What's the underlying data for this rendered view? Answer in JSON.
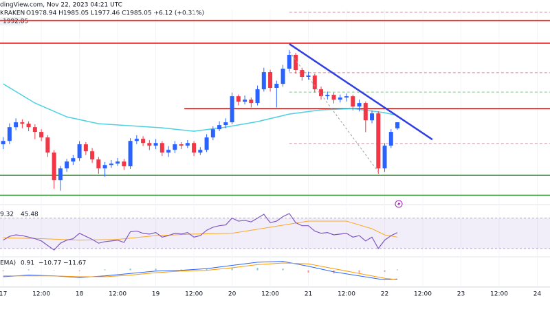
{
  "header": {
    "source": "dingView.com, Nov 22, 2023 04:21 UTC",
    "exchange": "KRAKEN",
    "ohlc": "O1978.94 H1985.05 L1977.46 C1985.05 +6.12 (+0.31%)",
    "price_tag": "1992.85"
  },
  "chart_data": [
    {
      "type": "candlestick",
      "up_color": "#2962ff",
      "down_color": "#f23645",
      "xlim": [
        -1,
        172
      ],
      "ylim": [
        1904,
        2098
      ],
      "xticks": [
        {
          "value": 0,
          "label": "17"
        },
        {
          "value": 12,
          "label": "12:00"
        },
        {
          "value": 24,
          "label": "18"
        },
        {
          "value": 36,
          "label": "12:00"
        },
        {
          "value": 48,
          "label": "19"
        },
        {
          "value": 60,
          "label": "12:00"
        },
        {
          "value": 72,
          "label": "20"
        },
        {
          "value": 84,
          "label": "12:00"
        },
        {
          "value": 96,
          "label": "21"
        },
        {
          "value": 108,
          "label": "12:00"
        },
        {
          "value": 120,
          "label": "22"
        },
        {
          "value": 132,
          "label": "12:00"
        },
        {
          "value": 144,
          "label": "23"
        },
        {
          "value": 156,
          "label": "12:00"
        },
        {
          "value": 168,
          "label": "24"
        }
      ],
      "x": [
        0,
        2,
        4,
        6,
        8,
        10,
        12,
        14,
        16,
        18,
        20,
        22,
        24,
        26,
        28,
        30,
        32,
        34,
        36,
        38,
        40,
        42,
        44,
        46,
        48,
        50,
        52,
        54,
        56,
        58,
        60,
        62,
        64,
        66,
        68,
        70,
        72,
        74,
        76,
        78,
        80,
        82,
        84,
        86,
        88,
        90,
        92,
        94,
        96,
        98,
        100,
        102,
        104,
        106,
        108,
        110,
        112,
        114,
        116,
        118,
        120,
        122,
        124
      ],
      "open": [
        1962.8,
        1966.2,
        1980.1,
        1985.0,
        1983.6,
        1980.1,
        1975.3,
        1969.7,
        1954.4,
        1926.7,
        1938.5,
        1945.4,
        1948.9,
        1962.8,
        1955.8,
        1947.5,
        1938.5,
        1941.9,
        1943.3,
        1945.4,
        1940.6,
        1966.2,
        1968.3,
        1964.1,
        1961.4,
        1964.1,
        1954.4,
        1957.2,
        1962.8,
        1961.4,
        1964.1,
        1954.4,
        1957.2,
        1969.7,
        1978.0,
        1982.2,
        1985.0,
        2011.3,
        2005.8,
        2007.9,
        2004.4,
        2018.3,
        2035.6,
        2019.7,
        2023.8,
        2039.1,
        2053.0,
        2037.7,
        2030.8,
        2032.2,
        2018.3,
        2011.3,
        2012.7,
        2007.9,
        2010.0,
        2011.3,
        2000.9,
        2004.4,
        1987.0,
        1994.0,
        1938.5,
        1961.4,
        1978.94
      ],
      "high": [
        1970,
        1984,
        1989,
        1988,
        1986,
        1983,
        1978,
        1972,
        1957,
        1941,
        1948,
        1952,
        1966,
        1965,
        1959,
        1950,
        1945,
        1947,
        1949,
        1948,
        1969,
        1972,
        1971,
        1967,
        1968,
        1966,
        1961,
        1966,
        1965,
        1967,
        1966,
        1960,
        1973,
        1981,
        1986,
        1989,
        2015,
        2013,
        2012,
        2010,
        2022,
        2040,
        2038,
        2027,
        2043,
        2058,
        2055,
        2040,
        2036,
        2034,
        2021,
        2016,
        2015,
        2013,
        2014,
        2013,
        2008,
        2006,
        1997,
        1996,
        1964,
        1978,
        1985.05
      ],
      "low": [
        1958,
        1963,
        1977,
        1979,
        1976,
        1968,
        1966,
        1950,
        1918,
        1916,
        1935,
        1942,
        1946,
        1952,
        1944,
        1933,
        1930,
        1939,
        1941,
        1937,
        1938,
        1963,
        1961,
        1957,
        1958,
        1951,
        1950,
        1954,
        1958,
        1959,
        1951,
        1952,
        1955,
        1967,
        1976,
        1979,
        1983,
        2002,
        2003,
        2000,
        2002,
        2016,
        2016,
        2000,
        2021,
        2036,
        2034,
        2027,
        2028,
        2015,
        2008,
        2008,
        2004,
        2005,
        2006,
        1997,
        1996,
        1975,
        1984,
        1933,
        1935,
        1959,
        1977.46
      ],
      "close": [
        1966.2,
        1980.1,
        1985.0,
        1983.6,
        1980.1,
        1975.3,
        1969.7,
        1954.4,
        1926.7,
        1938.5,
        1945.4,
        1948.9,
        1962.8,
        1955.8,
        1947.5,
        1938.5,
        1941.9,
        1943.3,
        1945.4,
        1940.6,
        1966.2,
        1968.3,
        1964.1,
        1961.4,
        1964.1,
        1954.4,
        1957.2,
        1962.8,
        1961.4,
        1964.1,
        1954.4,
        1957.2,
        1969.7,
        1978.0,
        1982.2,
        1985.0,
        2011.3,
        2005.8,
        2007.9,
        2004.4,
        2018.3,
        2035.6,
        2019.7,
        2023.8,
        2039.1,
        2053.0,
        2037.7,
        2030.8,
        2032.2,
        2018.3,
        2011.3,
        2012.7,
        2007.9,
        2010.0,
        2011.3,
        2000.9,
        2004.4,
        1987.0,
        1994.0,
        1938.5,
        1961.4,
        1975.3,
        1985.05
      ],
      "ma": {
        "color": "#4dd0e1",
        "x": [
          0,
          10,
          20,
          30,
          40,
          50,
          60,
          70,
          80,
          90,
          100,
          110,
          120,
          124
        ],
        "values": [
          2023.8,
          2004.4,
          1990.5,
          1983.6,
          1981.5,
          1979.4,
          1976.0,
          1980.1,
          1985.7,
          1993.3,
          1997.5,
          1998.8,
          1994.7,
          1991.9
        ]
      },
      "levels": [
        {
          "value": 2087.7,
          "color": "#e53935",
          "width": 2
        },
        {
          "value": 2064.8,
          "color": "#e53935",
          "width": 2
        },
        {
          "value": 1998.8,
          "color": "#e53935",
          "width": 2,
          "from": 57
        },
        {
          "value": 1931.5,
          "color": "#43a047",
          "width": 1.5
        },
        {
          "value": 1911.4,
          "color": "#43a047",
          "width": 1.5
        },
        {
          "value": 2096,
          "color": "#e57ba0",
          "width": 1,
          "dashed": true,
          "from": 90
        },
        {
          "value": 2035,
          "color": "#e57ba0",
          "width": 1,
          "dashed": true,
          "from": 90
        },
        {
          "value": 1963.5,
          "color": "#e57ba0",
          "width": 1,
          "dashed": true,
          "from": 90
        },
        {
          "value": 2015.5,
          "color": "#81c784",
          "width": 1,
          "dashed": true,
          "from": 90
        }
      ],
      "trendlines": [
        {
          "x": [
            90,
            135
          ],
          "values": [
            2064.1,
            1967.6
          ],
          "color": "#2f3fe0",
          "width": 2.5
        },
        {
          "x": [
            90,
            118
          ],
          "values": [
            2056.5,
            1935
          ],
          "color": "#9e9e9e",
          "width": 1,
          "dashed": true
        }
      ]
    },
    {
      "type": "rsi",
      "ylim": [
        20,
        85
      ],
      "band": [
        30,
        70
      ],
      "color": "#7e57c2",
      "legend": [
        {
          "text": "9.32",
          "color": "#7e57c2"
        },
        {
          "text": "45.48",
          "color": "#f9a825"
        }
      ],
      "values": [
        41,
        46,
        48,
        47,
        45,
        43,
        40,
        34,
        28,
        37,
        41,
        43,
        50,
        46,
        42,
        37,
        39,
        40,
        41,
        38,
        52,
        53,
        50,
        49,
        51,
        45,
        47,
        50,
        49,
        51,
        45,
        47,
        54,
        58,
        60,
        61,
        70,
        66,
        67,
        65,
        70,
        75,
        64,
        66,
        72,
        76,
        64,
        60,
        60,
        53,
        50,
        51,
        48,
        49,
        50,
        45,
        47,
        40,
        45,
        30,
        41,
        47,
        51
      ],
      "ma": {
        "color": "#f9a825",
        "x": [
          0,
          12,
          24,
          36,
          48,
          60,
          72,
          84,
          96,
          108,
          116,
          120,
          124
        ],
        "values": [
          44,
          43,
          41,
          42,
          47,
          49,
          50,
          58,
          66,
          66,
          56,
          48,
          45
        ]
      }
    },
    {
      "type": "macd",
      "ylim": [
        -20,
        15
      ],
      "legend": [
        {
          "text": "EMA)",
          "color": "#787b86"
        },
        {
          "text": "0.91",
          "color": "#2962ff"
        },
        {
          "text": "−10.77",
          "color": "#2962ff"
        },
        {
          "text": "−11.67",
          "color": "#ff6d00"
        }
      ],
      "x": [
        0,
        8,
        16,
        24,
        32,
        40,
        48,
        56,
        64,
        72,
        80,
        88,
        96,
        104,
        112,
        120,
        124
      ],
      "histogram": [
        -1,
        1,
        0,
        -1,
        1,
        2,
        2,
        1,
        2,
        3,
        3,
        2,
        -3,
        -4,
        -3,
        -2,
        0.91
      ],
      "macd": {
        "color": "#2962ff",
        "values": [
          -8,
          -6,
          -7,
          -9,
          -7,
          -4,
          -1,
          0,
          2,
          6,
          10,
          11,
          5,
          -2,
          -7,
          -12,
          -10.77
        ]
      },
      "signal": {
        "color": "#ff9800",
        "values": [
          -7,
          -7,
          -7,
          -8,
          -8,
          -6,
          -3,
          -1,
          0,
          3,
          7,
          9,
          8,
          2,
          -4,
          -10,
          -11.67
        ]
      }
    }
  ]
}
